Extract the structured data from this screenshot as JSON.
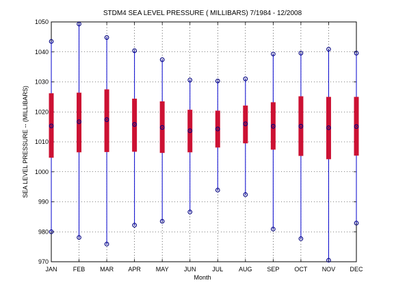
{
  "chart_data": {
    "type": "box",
    "title": "STDM4  SEA LEVEL PRESSURE ( MILLIBARS) 7/1984 - 12/2008",
    "xlabel": "Month",
    "ylabel": "SEA LEVEL PRESSURE -- (MILLIBARS)",
    "ylim": [
      970,
      1050
    ],
    "yticks": [
      970,
      980,
      990,
      1000,
      1010,
      1020,
      1030,
      1040,
      1050
    ],
    "grid": true,
    "categories": [
      "JAN",
      "FEB",
      "MAR",
      "APR",
      "MAY",
      "JUN",
      "JUL",
      "AUG",
      "SEP",
      "OCT",
      "NOV",
      "DEC"
    ],
    "max": [
      1043.5,
      1049.3,
      1044.8,
      1040.4,
      1037.4,
      1030.6,
      1030.3,
      1031.0,
      1039.3,
      1039.6,
      1040.9,
      1039.6
    ],
    "q3": [
      1026.2,
      1026.4,
      1027.5,
      1024.4,
      1023.5,
      1020.7,
      1020.4,
      1022.1,
      1023.2,
      1025.2,
      1025.0,
      1025.0
    ],
    "mean": [
      1015.3,
      1016.7,
      1017.4,
      1015.8,
      1014.8,
      1013.7,
      1014.3,
      1016.0,
      1015.2,
      1015.2,
      1014.7,
      1015.1
    ],
    "q1": [
      1004.7,
      1006.5,
      1006.6,
      1006.7,
      1006.3,
      1006.5,
      1008.1,
      1009.5,
      1007.4,
      1005.3,
      1004.2,
      1005.4
    ],
    "min": [
      980.0,
      978.1,
      975.9,
      982.2,
      983.5,
      986.6,
      993.9,
      992.4,
      980.9,
      977.7,
      970.5,
      982.9
    ],
    "colors": {
      "whisker": "#0000cc",
      "box": "#cc1133",
      "marker": "#000080",
      "grid": "#000000"
    }
  }
}
